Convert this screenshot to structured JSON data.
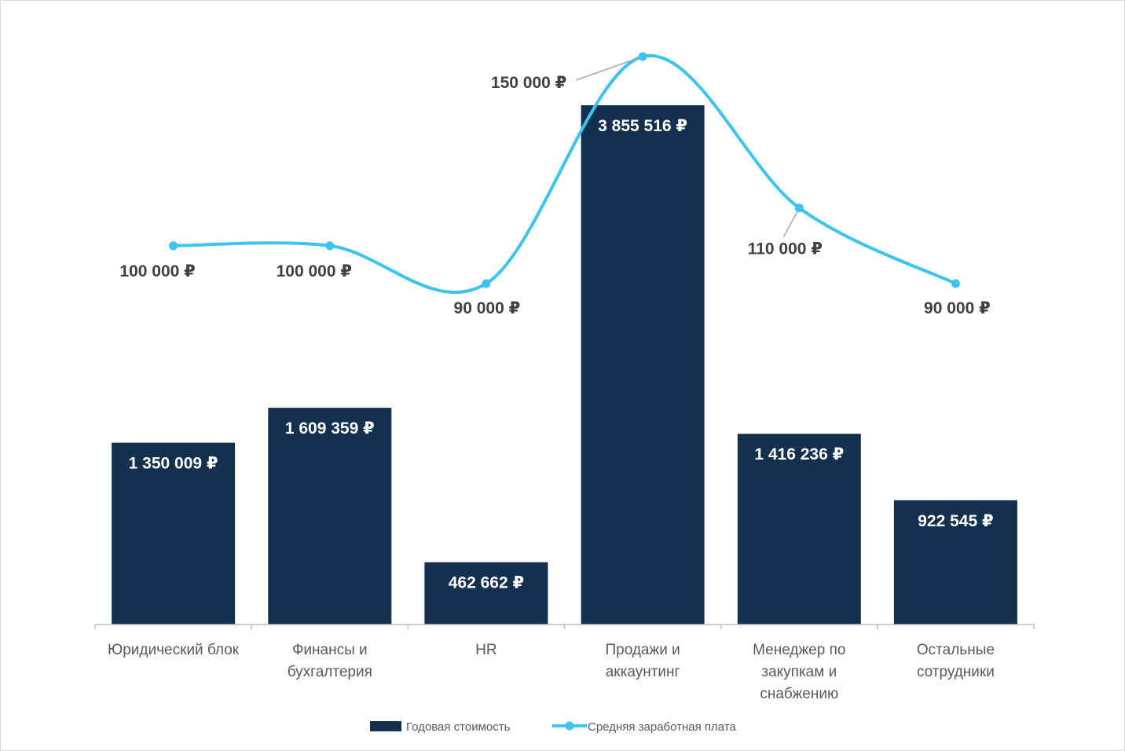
{
  "colors": {
    "bar": "#14304f",
    "line": "#3cc3ee",
    "axis": "#bfbfbf",
    "leader": "#a6a6a6"
  },
  "chart_data": {
    "type": "bar",
    "categories": [
      "Юридический блок",
      "Финансы и бухгалтерия",
      "HR",
      "Продажи и аккаунтинг",
      "Менеджер по закупкам и снабжению",
      "Остальные сотрудники"
    ],
    "category_lines": [
      [
        "Юридический блок"
      ],
      [
        "Финансы и",
        "бухгалтерия"
      ],
      [
        "HR"
      ],
      [
        "Продажи и",
        "аккаунтинг"
      ],
      [
        "Менеджер по",
        "закупкам и",
        "снабжению"
      ],
      [
        "Остальные",
        "сотрудники"
      ]
    ],
    "series": [
      {
        "name": "Годовая стоимость",
        "type": "bar",
        "values": [
          1350009,
          1609359,
          462662,
          3855516,
          1416236,
          922545
        ],
        "labels": [
          "1 350 009 ₽",
          "1 609 359 ₽",
          "462 662 ₽",
          "3 855 516 ₽",
          "1 416 236 ₽",
          "922 545 ₽"
        ]
      },
      {
        "name": "Средняя заработная плата",
        "type": "line",
        "smooth": true,
        "values": [
          100000,
          100000,
          90000,
          150000,
          110000,
          90000
        ],
        "labels": [
          "100 000 ₽",
          "100 000 ₽",
          "90 000 ₽",
          "150 000 ₽",
          "110 000 ₽",
          "90 000 ₽"
        ]
      }
    ],
    "title": "",
    "xlabel": "",
    "ylabel": "",
    "axes_visible": false,
    "grid": false,
    "legend": "bottom"
  }
}
